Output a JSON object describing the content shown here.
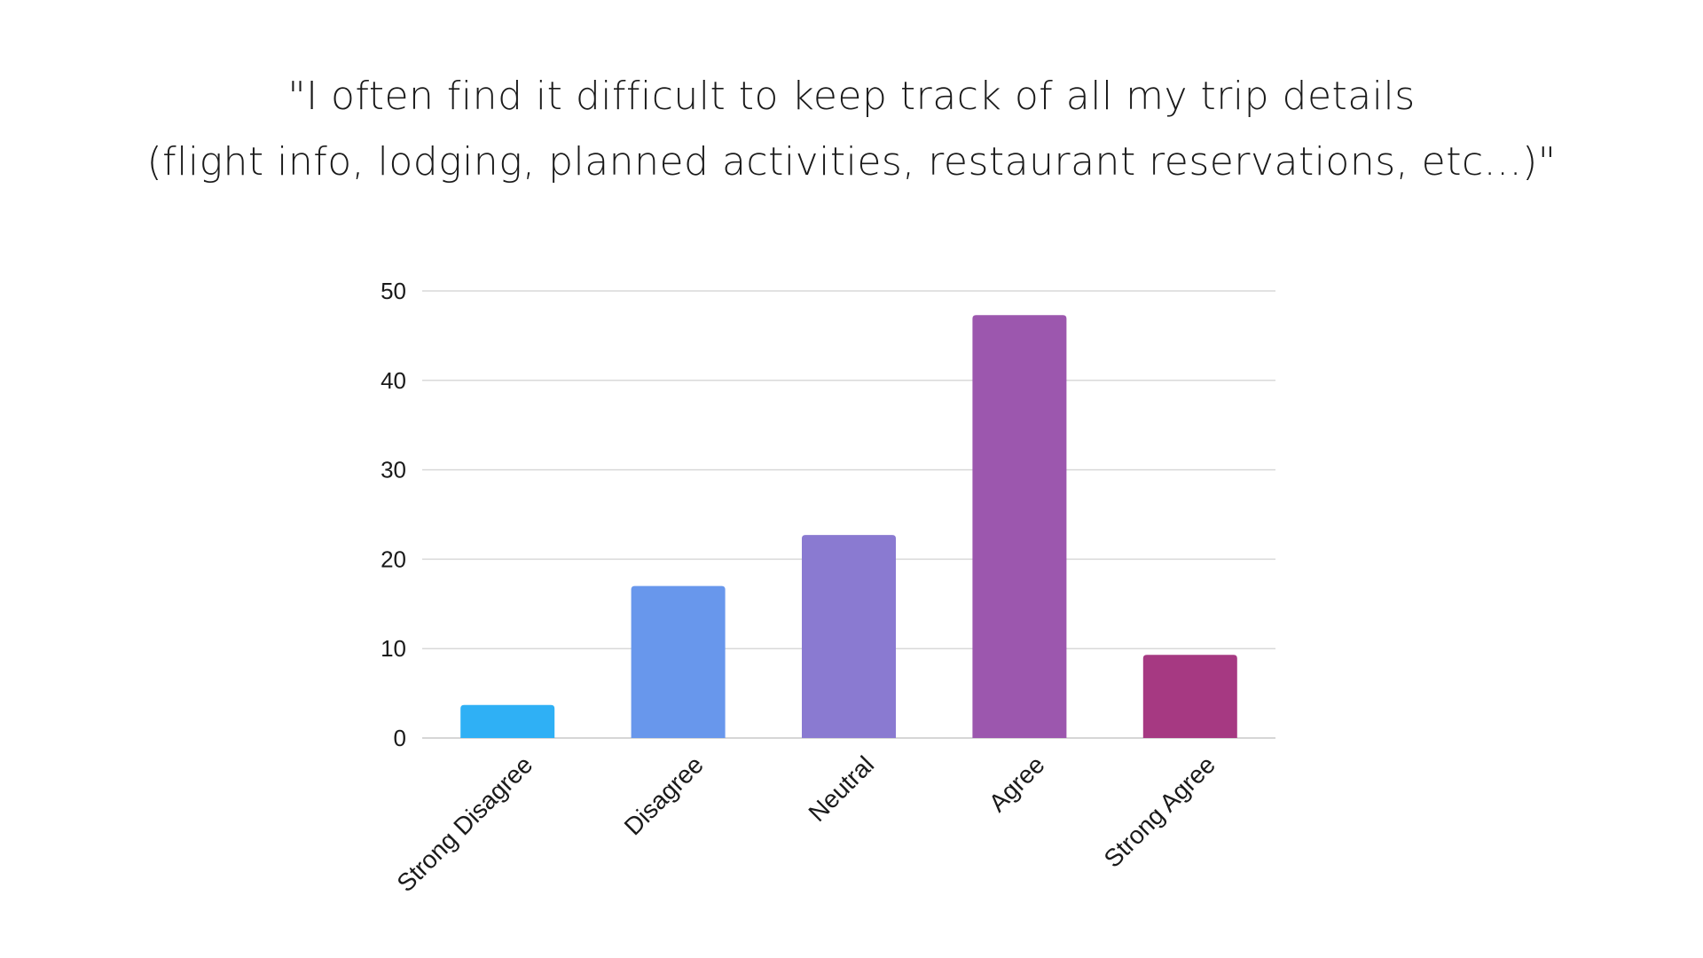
{
  "chart_data": {
    "type": "bar",
    "title_lines": [
      "\"I often find it difficult to keep track of all my trip details",
      "(flight info, lodging, planned activities, restaurant reservations, etc...)\""
    ],
    "categories": [
      "Strong Disagree",
      "Disagree",
      "Neutral",
      "Agree",
      "Strong Agree"
    ],
    "values": [
      3.7,
      17,
      22.7,
      47.3,
      9.3
    ],
    "colors": [
      "#2fb0f5",
      "#6897ec",
      "#8a7ad1",
      "#9c57ae",
      "#a63982"
    ],
    "ylim": [
      0,
      50
    ],
    "yticks": [
      0,
      10,
      20,
      30,
      40,
      50
    ],
    "grid": true,
    "legend": "none"
  }
}
